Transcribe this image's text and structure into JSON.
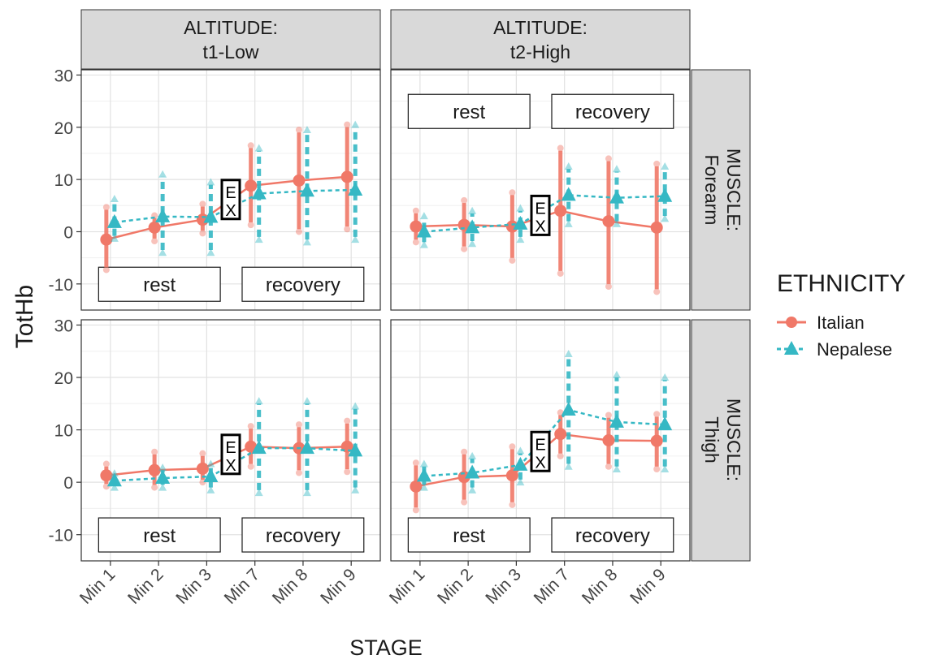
{
  "chart_data": {
    "type": "line",
    "ylabel": "TotHb",
    "xlabel": "STAGE",
    "categories": [
      "Min 1",
      "Min 2",
      "Min 3",
      "Min 7",
      "Min 8",
      "Min 9"
    ],
    "ylim": [
      -15,
      31
    ],
    "yticks": [
      -10,
      0,
      10,
      20,
      30
    ],
    "grid": true,
    "legend": {
      "title": "ETHNICITY",
      "position": "right",
      "entries": [
        {
          "name": "Italian",
          "color": "#F07868",
          "shape": "circle",
          "linetype": "solid"
        },
        {
          "name": "Nepalese",
          "color": "#35B8C4",
          "shape": "triangle",
          "linetype": "dashed"
        }
      ]
    },
    "annotations": {
      "rest": "rest",
      "recovery": "recovery",
      "ex_top": "E",
      "ex_bottom": "X"
    },
    "column_strips": [
      {
        "line1": "ALTITUDE:",
        "line2": "t1-Low"
      },
      {
        "line1": "ALTITUDE:",
        "line2": "t2-High"
      }
    ],
    "row_strips": [
      {
        "line1": "MUSCLE:",
        "line2": "Forearm"
      },
      {
        "line1": "MUSCLE:",
        "line2": "Thigh"
      }
    ],
    "panels": [
      {
        "altitude": "t1-Low",
        "muscle": "Forearm",
        "label_position": "bottom",
        "series": [
          {
            "name": "Italian",
            "means": [
              -1.5,
              0.8,
              2.3,
              8.8,
              9.8,
              10.5
            ],
            "lower": [
              -6.8,
              -1.3,
              0.2,
              1.8,
              0.5,
              1.0
            ],
            "upper": [
              4.2,
              2.6,
              4.8,
              16.0,
              19.0,
              20.0
            ]
          },
          {
            "name": "Nepalese",
            "means": [
              1.8,
              2.9,
              2.8,
              7.3,
              7.8,
              8.0
            ],
            "lower": [
              -0.8,
              -3.5,
              -3.5,
              -1.0,
              -1.5,
              -1.0
            ],
            "upper": [
              5.8,
              10.5,
              9.0,
              15.5,
              19.0,
              20.0
            ]
          }
        ]
      },
      {
        "altitude": "t2-High",
        "muscle": "Forearm",
        "label_position": "top",
        "series": [
          {
            "name": "Italian",
            "means": [
              1.0,
              1.3,
              1.0,
              4.0,
              2.0,
              0.8
            ],
            "lower": [
              -1.5,
              -2.8,
              -5.0,
              -7.5,
              -10.0,
              -11.0
            ],
            "upper": [
              3.5,
              5.5,
              7.0,
              15.5,
              13.5,
              12.5
            ]
          },
          {
            "name": "Nepalese",
            "means": [
              0.0,
              0.8,
              1.5,
              7.0,
              6.5,
              6.8
            ],
            "lower": [
              -2.0,
              -1.8,
              -1.0,
              2.0,
              2.0,
              3.0
            ],
            "upper": [
              2.5,
              3.5,
              4.0,
              12.0,
              11.5,
              12.0
            ]
          }
        ]
      },
      {
        "altitude": "t1-Low",
        "muscle": "Thigh",
        "label_position": "bottom",
        "series": [
          {
            "name": "Italian",
            "means": [
              1.3,
              2.3,
              2.6,
              6.8,
              6.5,
              6.8
            ],
            "lower": [
              -0.3,
              -0.5,
              0.5,
              3.5,
              2.3,
              2.5
            ],
            "upper": [
              3.0,
              5.3,
              5.0,
              10.2,
              10.5,
              11.2
            ]
          },
          {
            "name": "Nepalese",
            "means": [
              0.3,
              0.8,
              1.1,
              6.5,
              6.5,
              6.0
            ],
            "lower": [
              -0.5,
              -0.5,
              -1.0,
              -1.5,
              -1.5,
              -1.0
            ],
            "upper": [
              1.2,
              2.3,
              3.0,
              15.0,
              15.0,
              14.0
            ]
          }
        ]
      },
      {
        "altitude": "t2-High",
        "muscle": "Thigh",
        "label_position": "bottom",
        "series": [
          {
            "name": "Italian",
            "means": [
              -0.8,
              1.0,
              1.3,
              9.2,
              8.0,
              7.9
            ],
            "lower": [
              -4.8,
              -3.3,
              -3.8,
              5.5,
              3.5,
              3.0
            ],
            "upper": [
              3.2,
              5.3,
              6.3,
              12.8,
              12.3,
              12.5
            ]
          },
          {
            "name": "Nepalese",
            "means": [
              1.2,
              1.8,
              3.3,
              13.8,
              11.5,
              11.0
            ],
            "lower": [
              -0.5,
              -1.0,
              0.5,
              3.5,
              3.0,
              3.0
            ],
            "upper": [
              3.0,
              4.5,
              5.5,
              24.0,
              20.0,
              19.5
            ]
          }
        ]
      }
    ]
  }
}
